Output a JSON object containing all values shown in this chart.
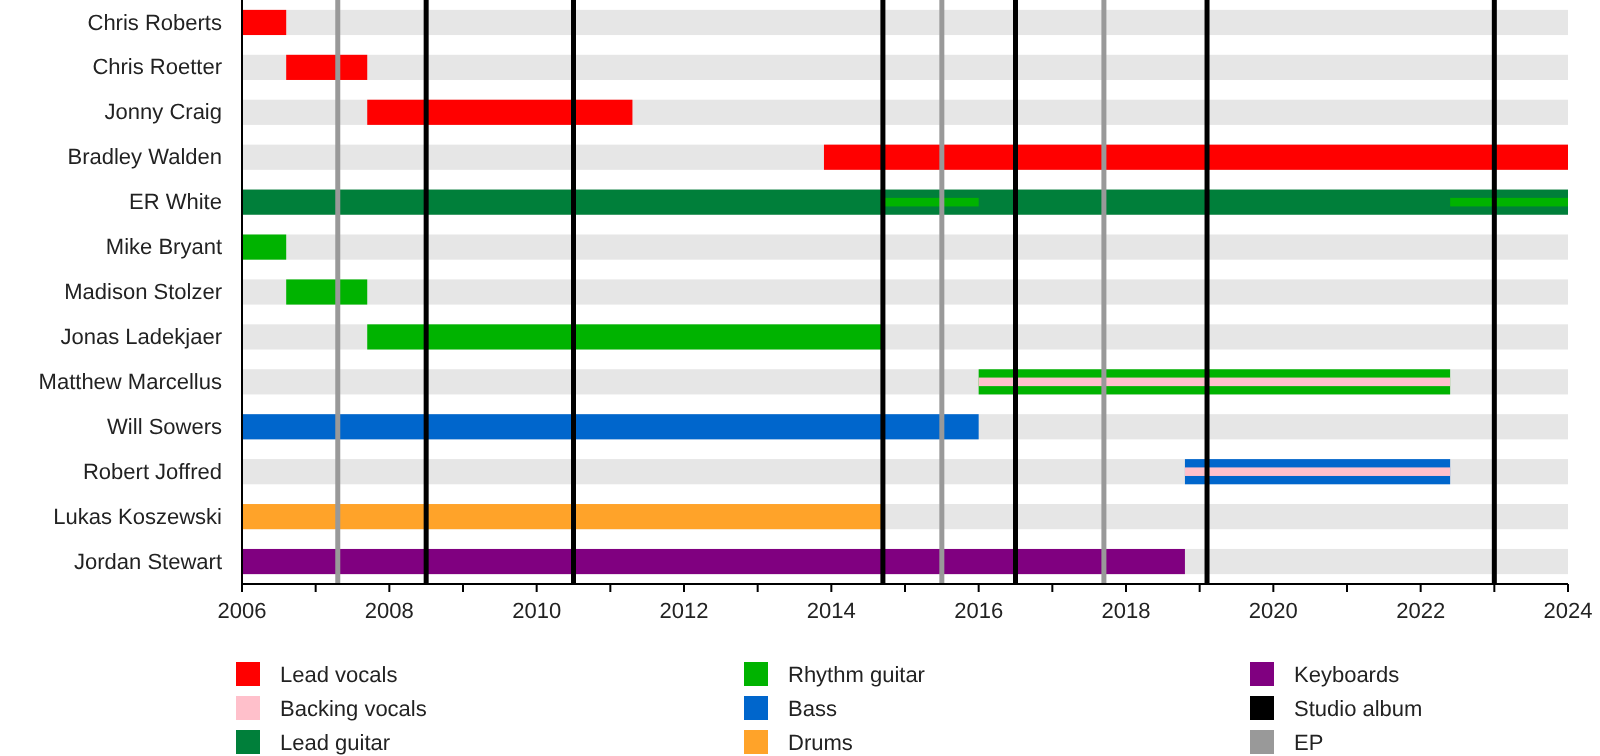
{
  "chart_data": {
    "type": "bar",
    "orientation": "horizontal",
    "legend": "bottom",
    "xlim": [
      2006,
      2024
    ],
    "xticks": [
      2006,
      {
        "value": 2007,
        "label": null
      },
      2008,
      {
        "value": 2009,
        "label": null
      },
      2010,
      {
        "value": 2011,
        "label": null
      },
      2012,
      {
        "value": 2013,
        "label": null
      },
      2014,
      {
        "value": 2015,
        "label": null
      },
      2016,
      {
        "value": 2017,
        "label": null
      },
      2018,
      {
        "value": 2019,
        "label": null
      },
      2020,
      {
        "value": 2021,
        "label": null
      },
      2022,
      {
        "value": 2023,
        "label": null
      },
      2024
    ],
    "categories": [
      "Chris Roberts",
      "Chris Roetter",
      "Jonny Craig",
      "Bradley Walden",
      "ER White",
      "Mike Bryant",
      "Madison Stolzer",
      "Jonas Ladekjaer",
      "Matthew Marcellus",
      "Will Sowers",
      "Robert Joffred",
      "Lukas Koszewski",
      "Jordan Stewart"
    ],
    "series": [
      {
        "name": "Lead vocals",
        "color": "#ff0000",
        "base": [
          2006,
          2006.6,
          2007.7,
          2013.9,
          null,
          null,
          null,
          null,
          null,
          null,
          null,
          null,
          null
        ],
        "values": [
          0.6,
          1.1,
          3.6,
          10.1,
          null,
          null,
          null,
          null,
          null,
          null,
          null,
          null,
          null
        ]
      },
      {
        "name": "Backing vocals",
        "color": "#ffc0cb",
        "base": [
          null,
          null,
          null,
          null,
          null,
          null,
          null,
          null,
          2016.0,
          null,
          2018.8,
          null,
          null
        ],
        "values": [
          null,
          null,
          null,
          null,
          null,
          null,
          null,
          null,
          6.4,
          null,
          3.6,
          null,
          null
        ]
      },
      {
        "name": "Lead guitar",
        "color": "#007f3a",
        "base": [
          null,
          null,
          null,
          null,
          2006,
          null,
          null,
          null,
          null,
          null,
          null,
          null,
          null
        ],
        "values": [
          null,
          null,
          null,
          null,
          18,
          null,
          null,
          null,
          null,
          null,
          null,
          null,
          null
        ]
      },
      {
        "name": "Rhythm guitar",
        "color": "#00b300",
        "base": [
          null,
          null,
          null,
          null,
          2014.7,
          2006,
          2006.6,
          2007.7,
          2016.0,
          null,
          null,
          null,
          null
        ],
        "values": [
          null,
          null,
          null,
          null,
          1.3,
          0.6,
          1.1,
          7.0,
          6.4,
          null,
          null,
          null,
          null
        ]
      },
      {
        "color": "#00b300",
        "base": [
          null,
          null,
          null,
          null,
          2022.4,
          null,
          null,
          null,
          null,
          null,
          null,
          null,
          null
        ],
        "values": [
          null,
          null,
          null,
          null,
          1.6,
          null,
          null,
          null,
          null,
          null,
          null,
          null,
          null
        ]
      },
      {
        "name": "Bass",
        "color": "#0066cc",
        "base": [
          null,
          null,
          null,
          null,
          null,
          null,
          null,
          null,
          null,
          2006,
          2018.8,
          null,
          null
        ],
        "values": [
          null,
          null,
          null,
          null,
          null,
          null,
          null,
          null,
          null,
          10.0,
          3.6,
          null,
          null
        ]
      },
      {
        "name": "Drums",
        "color": "#ffa329",
        "base": [
          null,
          null,
          null,
          null,
          null,
          null,
          null,
          null,
          null,
          null,
          null,
          2006,
          null
        ],
        "values": [
          null,
          null,
          null,
          null,
          null,
          null,
          null,
          null,
          null,
          null,
          null,
          8.7,
          null
        ]
      },
      {
        "name": "Keyboards",
        "color": "#800080",
        "base": [
          null,
          null,
          null,
          null,
          null,
          null,
          null,
          null,
          null,
          null,
          null,
          null,
          2006
        ],
        "values": [
          null,
          null,
          null,
          null,
          null,
          null,
          null,
          null,
          null,
          null,
          null,
          null,
          12.8
        ]
      }
    ],
    "ref_lines": [
      {
        "axis": "x",
        "value": 2007.3,
        "label": "EP",
        "color": "#999999"
      },
      {
        "axis": "x",
        "value": 2008.5,
        "label": "Studio album",
        "color": "#000000"
      },
      {
        "axis": "x",
        "value": 2010.5,
        "label": null,
        "color": "#000000"
      },
      {
        "axis": "x",
        "value": 2014.7,
        "label": null,
        "color": "#000000"
      },
      {
        "axis": "x",
        "value": 2015.5,
        "label": null,
        "color": "#999999"
      },
      {
        "axis": "x",
        "value": 2016.5,
        "label": null,
        "color": "#000000"
      },
      {
        "axis": "x",
        "value": 2017.7,
        "label": null,
        "color": "#999999"
      },
      {
        "axis": "x",
        "value": 2019.1,
        "label": null,
        "color": "#000000"
      },
      {
        "axis": "x",
        "value": 2023.0,
        "label": null,
        "color": "#000000"
      }
    ]
  }
}
